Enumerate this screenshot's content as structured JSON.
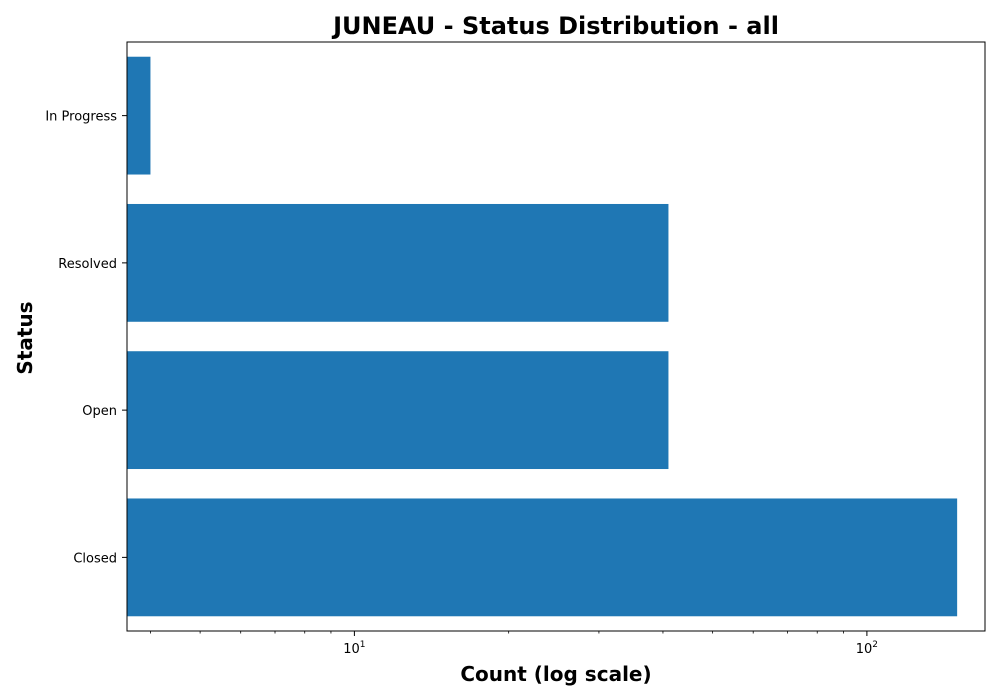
{
  "chart_data": {
    "type": "bar",
    "orientation": "horizontal",
    "title": "JUNEAU - Status Distribution - all",
    "xlabel": "Count (log scale)",
    "ylabel": "Status",
    "x_scale": "log",
    "xlim": [
      3.6,
      170
    ],
    "categories": [
      "In Progress",
      "Resolved",
      "Open",
      "Closed"
    ],
    "values": [
      4,
      41,
      41,
      150
    ],
    "x_ticks": [
      {
        "value": 10,
        "base": "10",
        "exp": "1"
      },
      {
        "value": 100,
        "base": "10",
        "exp": "2"
      }
    ],
    "bar_color": "#1f77b4",
    "grid": false,
    "legend": "none"
  }
}
